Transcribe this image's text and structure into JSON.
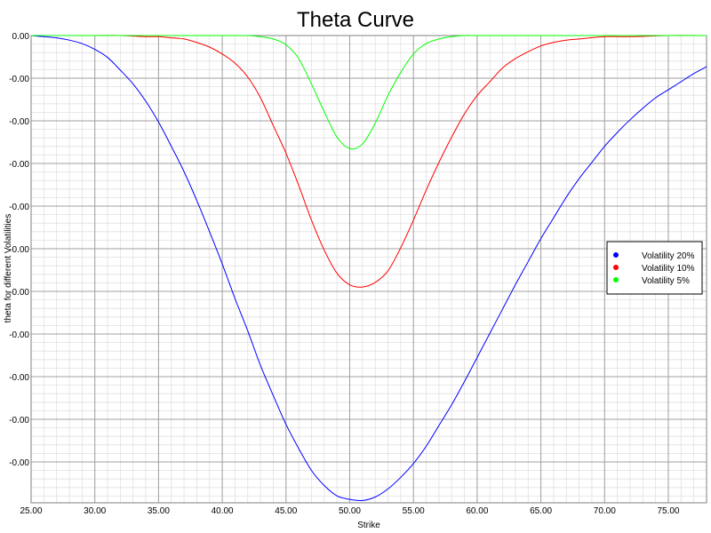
{
  "chart_data": {
    "type": "line",
    "title": "Theta Curve",
    "xlabel": "Strike",
    "ylabel": "theta for different Volatilities",
    "xlim": [
      25,
      78
    ],
    "x_ticks": [
      "25.00",
      "30.00",
      "35.00",
      "40.00",
      "45.00",
      "50.00",
      "55.00",
      "60.00",
      "65.00",
      "70.00",
      "75.00"
    ],
    "y_ticks": [
      "0.00",
      "-0.00",
      "-0.00",
      "-0.00",
      "-0.00",
      "-0.00",
      "-0.00",
      "-0.00",
      "-0.00",
      "-0.00",
      "-0.00"
    ],
    "grid": true,
    "legend_position": "right",
    "series": [
      {
        "name": "Volatility 20%",
        "color": "#0000ff",
        "x": [
          25,
          26,
          27,
          28,
          29,
          30,
          31,
          32,
          33,
          34,
          35,
          36,
          37,
          38,
          39,
          40,
          41,
          42,
          43,
          44,
          45,
          46,
          47,
          48,
          49,
          50,
          51,
          52,
          53,
          54,
          55,
          56,
          57,
          58,
          59,
          60,
          61,
          62,
          63,
          64,
          65,
          66,
          67,
          68,
          69,
          70,
          71,
          72,
          73,
          74,
          75,
          76,
          77,
          78
        ],
        "y": [
          -0.0,
          -0.01,
          -0.02,
          -0.04,
          -0.07,
          -0.12,
          -0.19,
          -0.3,
          -0.42,
          -0.57,
          -0.75,
          -0.96,
          -1.18,
          -1.43,
          -1.7,
          -1.98,
          -2.28,
          -2.56,
          -2.86,
          -3.12,
          -3.37,
          -3.58,
          -3.77,
          -3.9,
          -3.99,
          -4.02,
          -4.03,
          -4.0,
          -3.93,
          -3.83,
          -3.71,
          -3.56,
          -3.38,
          -3.2,
          -3.0,
          -2.79,
          -2.58,
          -2.37,
          -2.16,
          -1.96,
          -1.76,
          -1.58,
          -1.4,
          -1.24,
          -1.1,
          -0.96,
          -0.84,
          -0.73,
          -0.63,
          -0.54,
          -0.47,
          -0.4,
          -0.33,
          -0.27
        ]
      },
      {
        "name": "Volatility 10%",
        "color": "#ff0000",
        "x": [
          25,
          30,
          32,
          34,
          35,
          36,
          37,
          38,
          39,
          40,
          41,
          42,
          43,
          44,
          45,
          46,
          47,
          48,
          49,
          50,
          51,
          52,
          53,
          54,
          55,
          56,
          57,
          58,
          59,
          60,
          61,
          62,
          63,
          64,
          65,
          66,
          67,
          68,
          70,
          72,
          75,
          78
        ],
        "y": [
          0.0,
          0.0,
          -0.0,
          -0.01,
          -0.01,
          -0.02,
          -0.03,
          -0.06,
          -0.1,
          -0.16,
          -0.24,
          -0.36,
          -0.54,
          -0.78,
          -1.02,
          -1.3,
          -1.6,
          -1.86,
          -2.06,
          -2.16,
          -2.18,
          -2.14,
          -2.04,
          -1.84,
          -1.6,
          -1.34,
          -1.1,
          -0.88,
          -0.68,
          -0.52,
          -0.4,
          -0.28,
          -0.2,
          -0.14,
          -0.09,
          -0.06,
          -0.04,
          -0.03,
          -0.01,
          -0.01,
          -0.0,
          -0.0
        ]
      },
      {
        "name": "Volatility 5%",
        "color": "#00ff00",
        "x": [
          25,
          40,
          42,
          43,
          44,
          45,
          46,
          47,
          48,
          49,
          50,
          51,
          52,
          53,
          54,
          55,
          56,
          57,
          58,
          59,
          60,
          65,
          70,
          75,
          78
        ],
        "y": [
          0.0,
          0.0,
          -0.0,
          -0.01,
          -0.03,
          -0.08,
          -0.2,
          -0.42,
          -0.66,
          -0.88,
          -0.98,
          -0.94,
          -0.76,
          -0.52,
          -0.32,
          -0.16,
          -0.07,
          -0.03,
          -0.01,
          -0.0,
          0.0,
          0.0,
          0.0,
          0.0,
          0.0
        ]
      }
    ]
  }
}
